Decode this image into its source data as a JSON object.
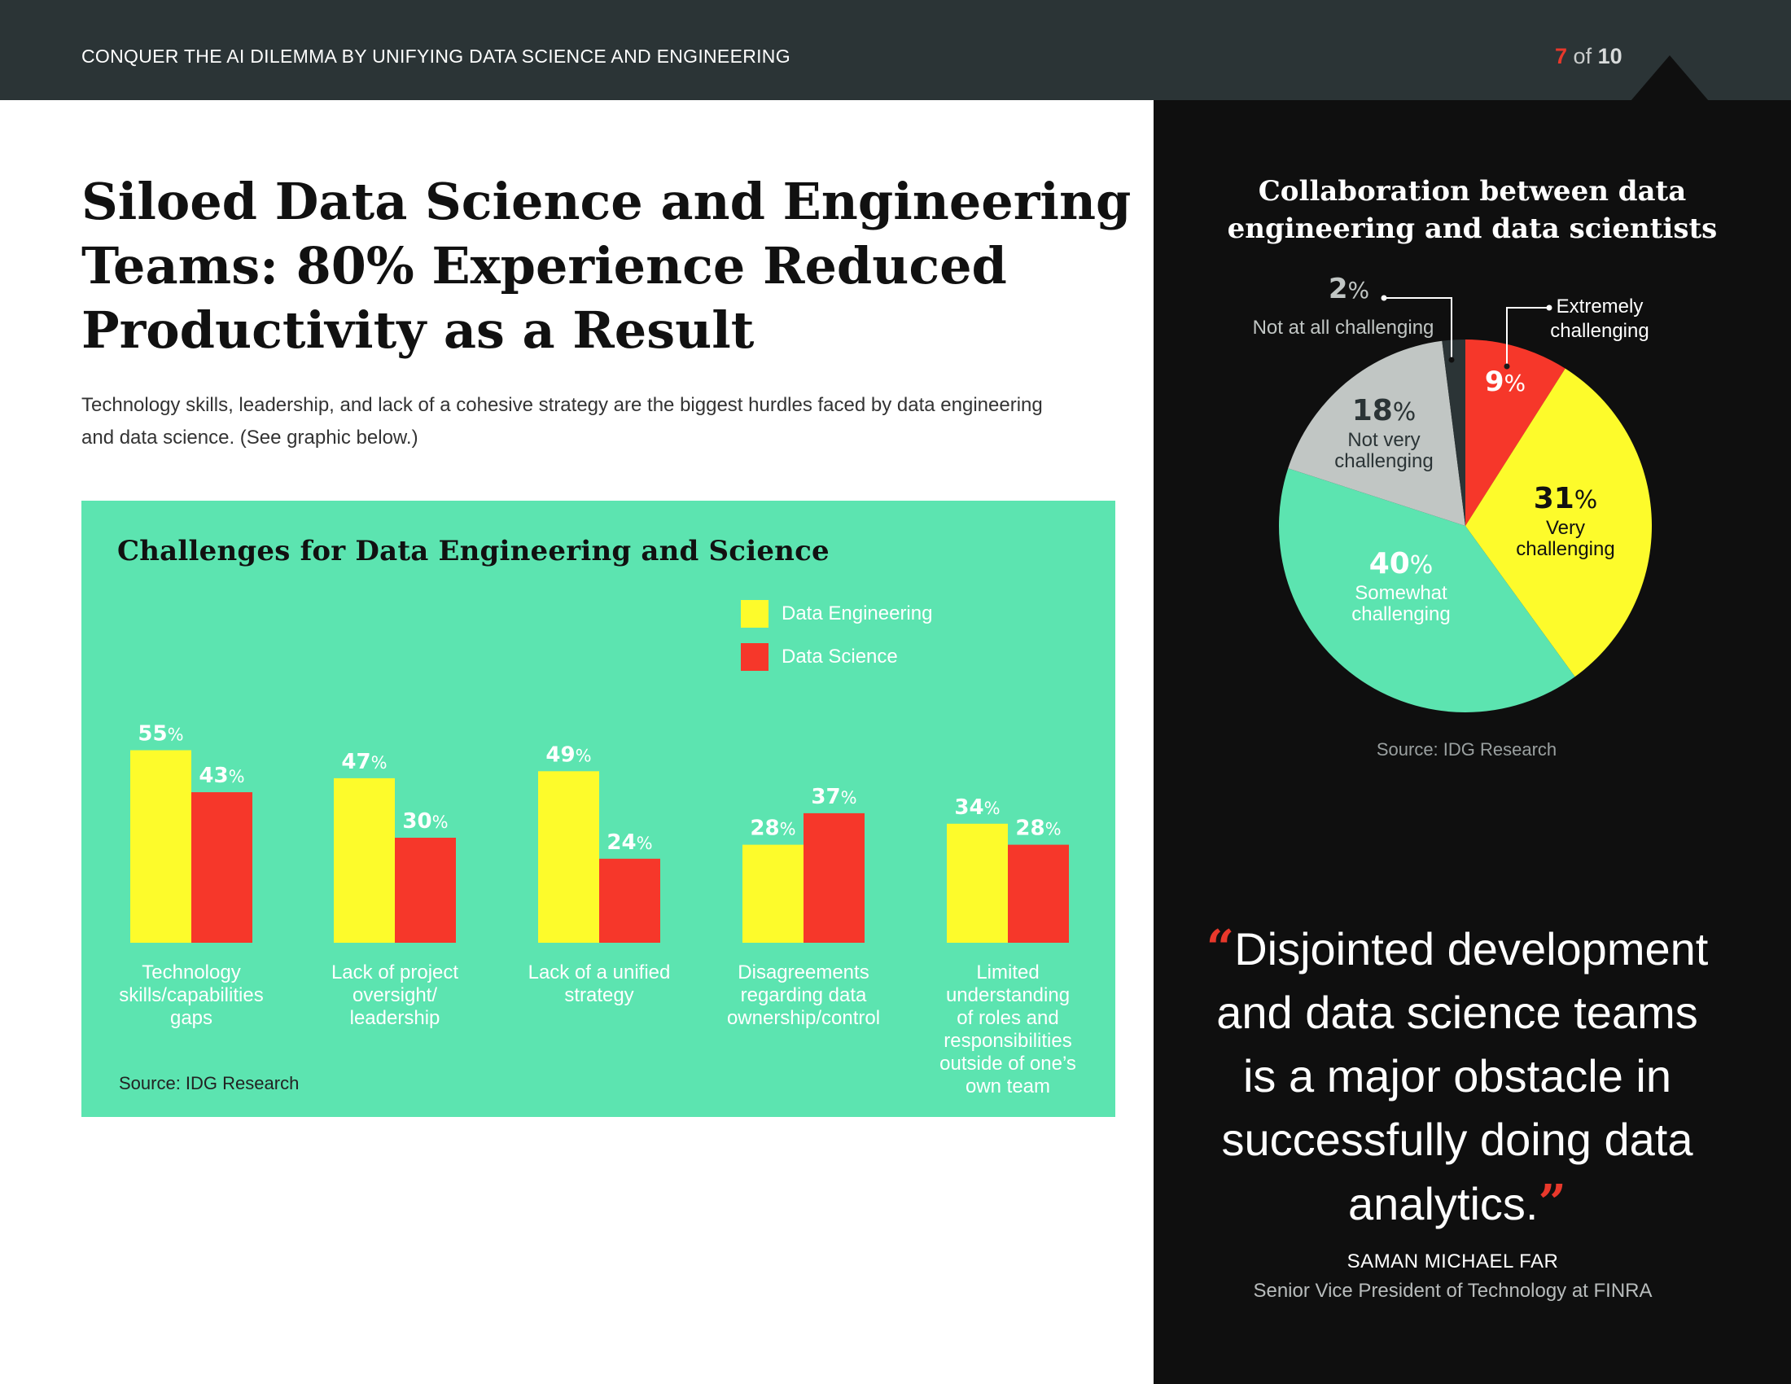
{
  "header": {
    "title": "CONQUER THE AI DILEMMA BY UNIFYING DATA SCIENCE AND ENGINEERING",
    "page_current": "7",
    "page_of": "of",
    "page_total": "10"
  },
  "main": {
    "title_lines": [
      "Siloed Data Science and Engineering",
      "Teams: 80% Experience Reduced",
      "Productivity as a Result"
    ],
    "subtitle_lines": [
      "Technology skills, leadership, and lack of a cohesive strategy are the biggest hurdles faced by data engineering",
      "and data science. (See graphic below.)"
    ]
  },
  "colors": {
    "engineering": "#fdfb2b",
    "science": "#f6372a",
    "teal": "#5ce4b0",
    "gray": "#c1c6c4",
    "dark": "#2b3436"
  },
  "chart_data": [
    {
      "type": "bar",
      "title": "Challenges for Data Engineering and Science",
      "categories": [
        [
          "Technology",
          "skills/capabilities",
          "gaps"
        ],
        [
          "Lack of project",
          "oversight/",
          "leadership"
        ],
        [
          "Lack of a unified",
          "strategy"
        ],
        [
          "Disagreements",
          "regarding data",
          "ownership/control"
        ],
        [
          "Limited",
          "understanding",
          "of roles and",
          "responsibilities",
          "outside of one’s",
          "own team"
        ]
      ],
      "series": [
        {
          "name": "Data Engineering",
          "values": [
            55,
            47,
            49,
            28,
            34
          ]
        },
        {
          "name": "Data Science",
          "values": [
            43,
            30,
            24,
            37,
            28
          ]
        }
      ],
      "unit": "%",
      "ylim": [
        0,
        60
      ],
      "legend": "top-right",
      "source": "Source: IDG Research"
    },
    {
      "type": "pie",
      "title_lines": [
        "Collaboration between data",
        "engineering and data scientists"
      ],
      "slices": [
        {
          "label_lines": [
            "Extremely",
            "challenging"
          ],
          "value": 9
        },
        {
          "label_lines": [
            "Very",
            "challenging"
          ],
          "value": 31
        },
        {
          "label_lines": [
            "Somewhat",
            "challenging"
          ],
          "value": 40
        },
        {
          "label_lines": [
            "Not very",
            "challenging"
          ],
          "value": 18
        },
        {
          "label_lines": [
            "Not at all challenging"
          ],
          "value": 2
        }
      ],
      "unit": "%",
      "source": "Source: IDG Research"
    }
  ],
  "quote": {
    "open_mark": "“",
    "lines": [
      "Disjointed development",
      "and data science teams",
      "is a major obstacle in",
      "successfully doing data",
      "analytics."
    ],
    "close_mark": "”",
    "author": "SAMAN MICHAEL FAR",
    "role": "Senior Vice President of Technology at FINRA"
  }
}
